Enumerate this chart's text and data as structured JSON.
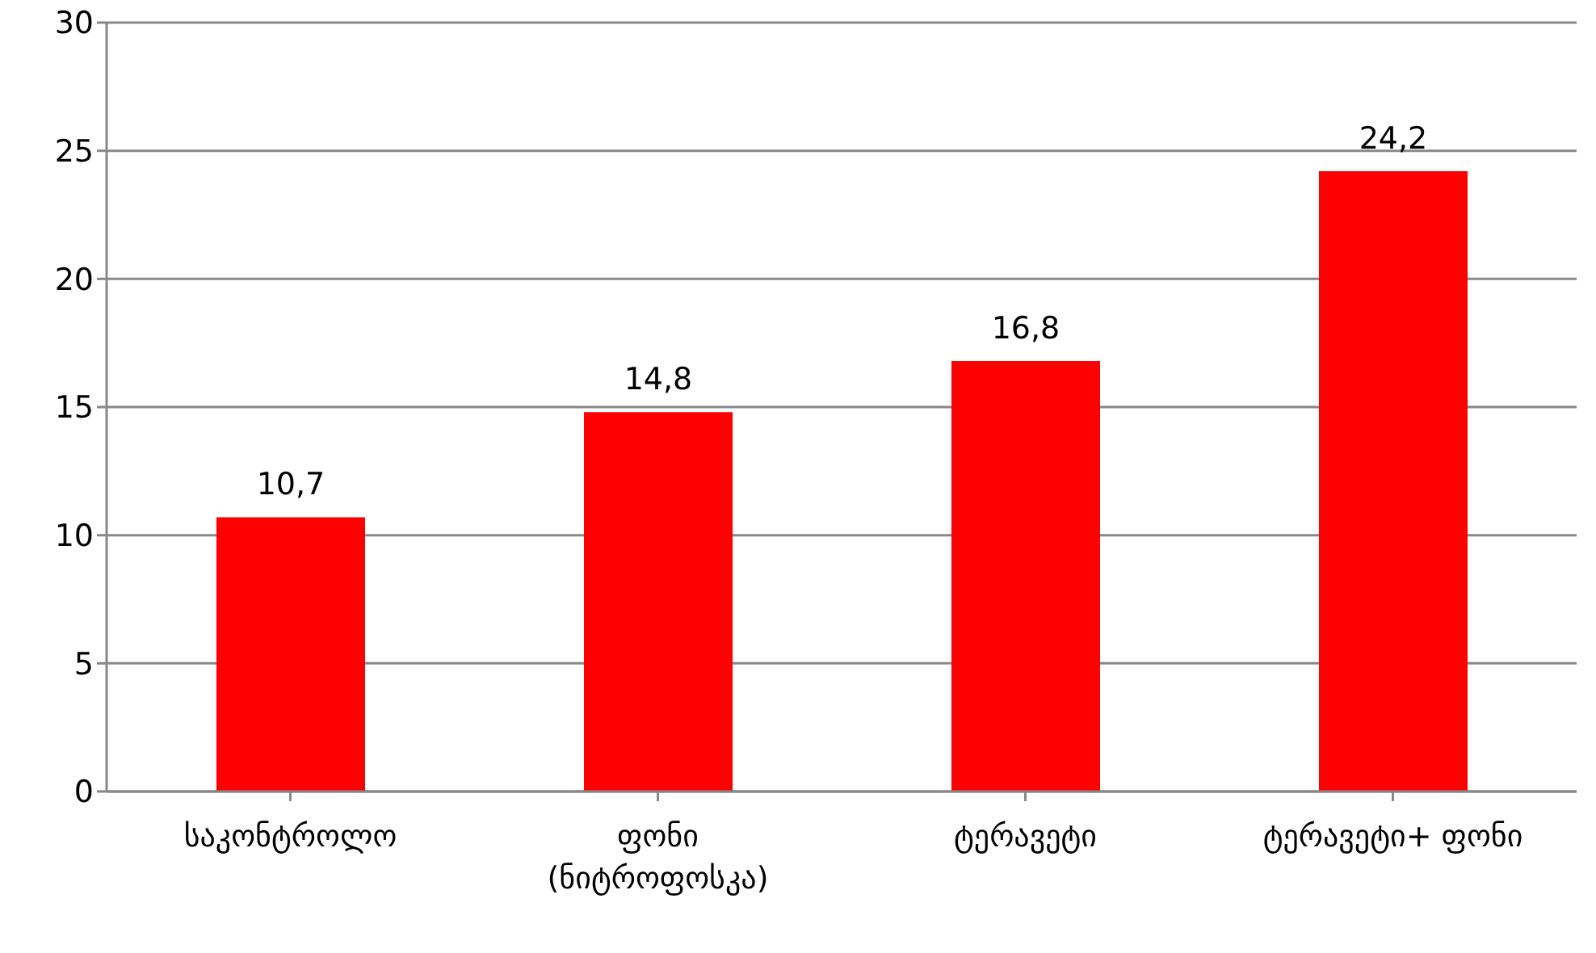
{
  "chart_data": {
    "type": "bar",
    "categories": [
      "საკონტროლო",
      "ფონი\n(ნიტროფოსკა)",
      "ტერავეტი",
      "ტერავეტი+ ფონი"
    ],
    "values": [
      10.7,
      14.8,
      16.8,
      24.2
    ],
    "value_labels": [
      "10,7",
      "14,8",
      "16,8",
      "24,2"
    ],
    "color": "#ff0000",
    "ylim": [
      0,
      30
    ],
    "yticks": [
      0,
      5,
      10,
      15,
      20,
      25,
      30
    ],
    "grid": "y"
  }
}
